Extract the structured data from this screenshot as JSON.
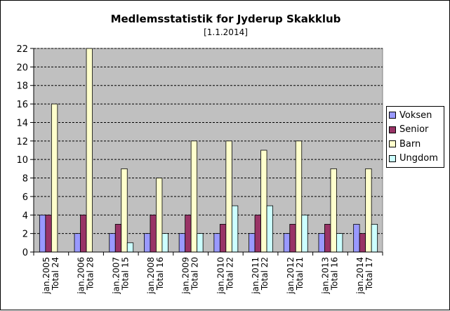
{
  "chart_data": {
    "type": "bar",
    "title": "Medlemsstatistik for Jyderup Skakklub",
    "subtitle": "[1.1.2014]",
    "xlabel": "",
    "ylabel": "",
    "ylim": [
      0,
      22
    ],
    "yticks": [
      0,
      2,
      4,
      6,
      8,
      10,
      12,
      14,
      16,
      18,
      20,
      22
    ],
    "grid": true,
    "legend_position": "right",
    "categories": [
      [
        "jan.2005",
        "Total 24"
      ],
      [
        "jan.2006",
        "Total 28"
      ],
      [
        "jan.2007",
        "Total 15"
      ],
      [
        "jan.2008",
        "Total 16"
      ],
      [
        "jan.2009",
        "Total 20"
      ],
      [
        "jan.2010",
        "Total 22"
      ],
      [
        "jan.2011",
        "Total 22"
      ],
      [
        "jan.2012",
        "Total 21"
      ],
      [
        "jan.2013",
        "Total 16"
      ],
      [
        "jan.2014",
        "Total 17"
      ]
    ],
    "series": [
      {
        "name": "Voksen",
        "color": "#9999FF",
        "values": [
          4,
          2,
          2,
          2,
          2,
          2,
          2,
          2,
          2,
          3
        ]
      },
      {
        "name": "Senior",
        "color": "#993366",
        "values": [
          4,
          4,
          3,
          4,
          4,
          3,
          4,
          3,
          3,
          2
        ]
      },
      {
        "name": "Barn",
        "color": "#FFFFCC",
        "values": [
          16,
          22,
          9,
          8,
          12,
          12,
          11,
          12,
          9,
          9
        ]
      },
      {
        "name": "Ungdom",
        "color": "#CCFFFF",
        "values": [
          0,
          0,
          1,
          2,
          2,
          5,
          5,
          4,
          2,
          3
        ]
      }
    ],
    "plot_background": "#C0C0C0"
  }
}
